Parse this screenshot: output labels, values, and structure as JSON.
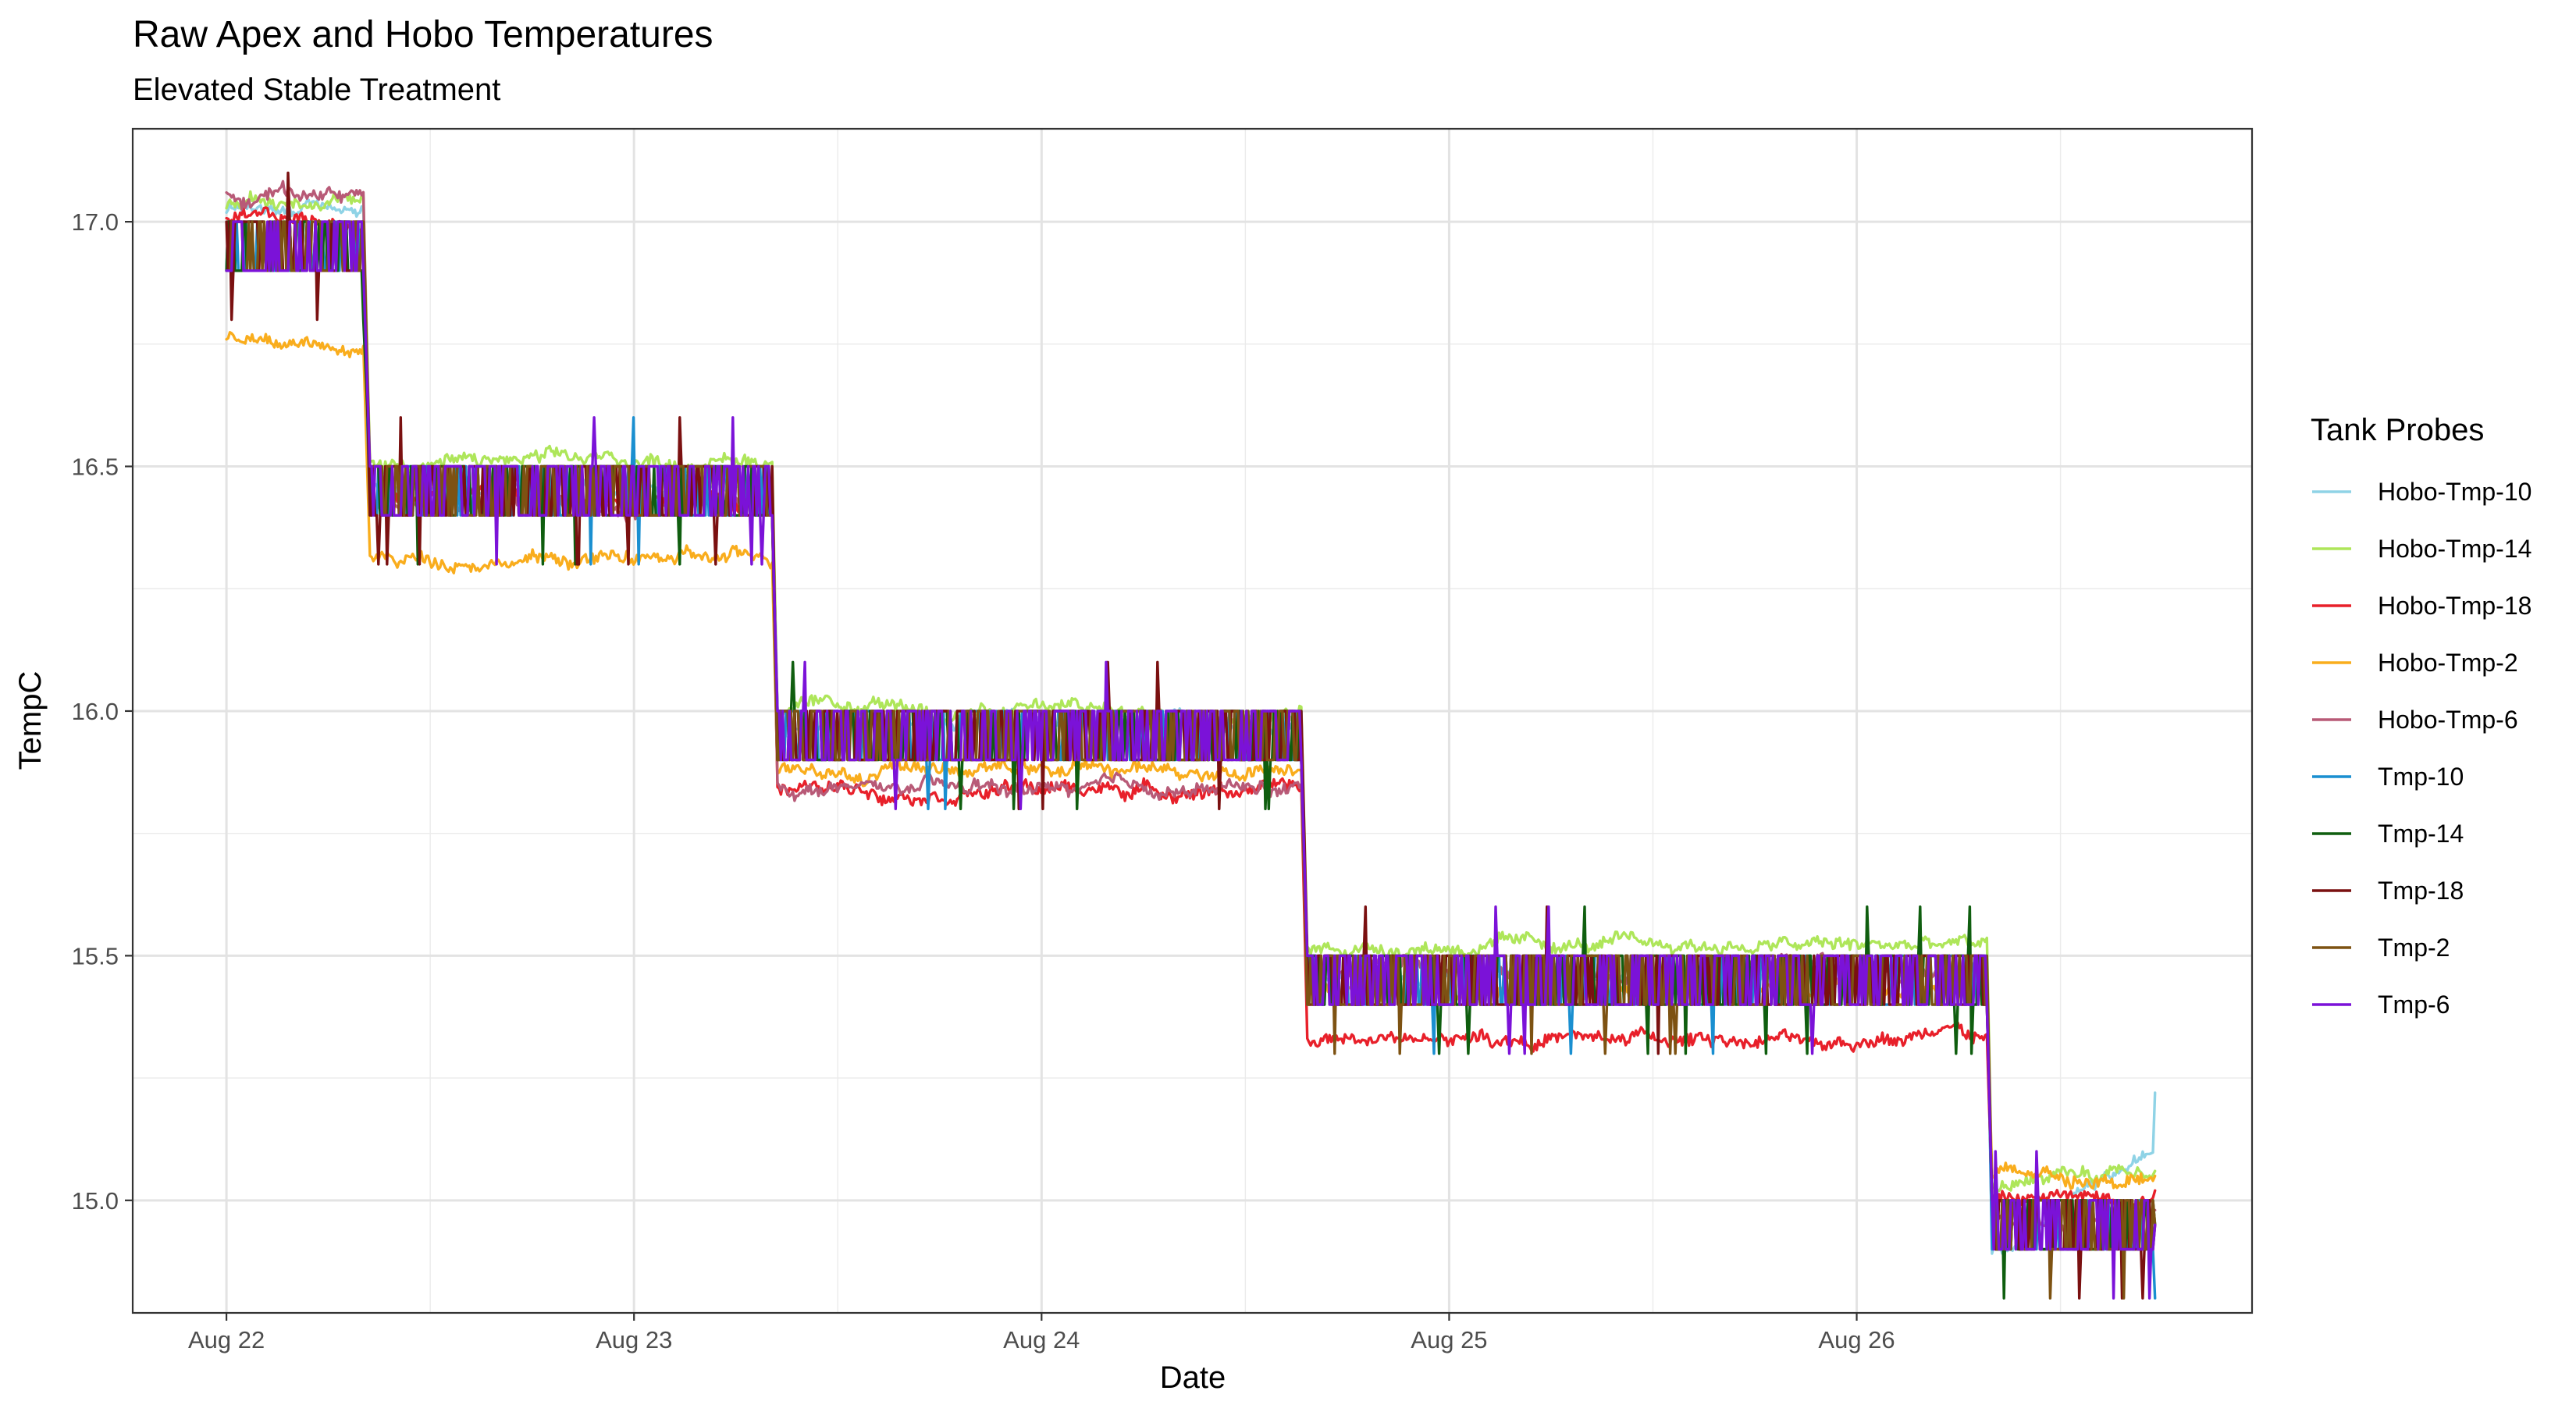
{
  "chart_data": {
    "type": "line",
    "title": "Raw Apex and Hobo Temperatures",
    "subtitle": "Elevated Stable Treatment",
    "xlabel": "Date",
    "ylabel": "TempC",
    "x_ticks": [
      {
        "day": 0,
        "label": "Aug 22"
      },
      {
        "day": 1,
        "label": "Aug 23"
      },
      {
        "day": 2,
        "label": "Aug 24"
      },
      {
        "day": 3,
        "label": "Aug 25"
      },
      {
        "day": 4,
        "label": "Aug 26"
      }
    ],
    "xlim_days": [
      -0.23,
      4.97
    ],
    "y_ticks": [
      "15.0",
      "15.5",
      "16.0",
      "16.5",
      "17.0"
    ],
    "ylim": [
      14.77,
      17.19
    ],
    "grid": true,
    "legend": {
      "title": "Tank Probes",
      "position": "right"
    },
    "step_days": [
      0.34,
      1.34,
      2.64,
      4.32,
      4.73
    ],
    "series": [
      {
        "name": "Hobo-Tmp-10",
        "color": "#8fd3e6",
        "kind": "hobo",
        "levels": [
          17.03,
          16.46,
          15.97,
          15.46,
          14.9
        ],
        "noise": 0.015,
        "end": 15.22
      },
      {
        "name": "Hobo-Tmp-14",
        "color": "#aee65a",
        "kind": "hobo",
        "levels": [
          17.04,
          16.51,
          16.0,
          15.52,
          15.03
        ],
        "noise": 0.02,
        "end": 15.06
      },
      {
        "name": "Hobo-Tmp-18",
        "color": "#e8202a",
        "kind": "hobo",
        "levels": [
          17.0,
          16.43,
          15.84,
          15.33,
          15.0
        ],
        "noise": 0.02,
        "end": 15.02
      },
      {
        "name": "Hobo-Tmp-2",
        "color": "#f9ad1d",
        "kind": "hobo",
        "levels": [
          16.76,
          16.31,
          15.88,
          15.43,
          15.05
        ],
        "noise": 0.02,
        "end": 15.05
      },
      {
        "name": "Hobo-Tmp-6",
        "color": "#b85a77",
        "kind": "hobo",
        "levels": [
          17.06,
          16.42,
          15.84,
          15.47,
          14.96
        ],
        "noise": 0.02,
        "end": 14.98
      },
      {
        "name": "Tmp-10",
        "color": "#1a8fd0",
        "kind": "tmp",
        "levels": [
          16.95,
          16.45,
          15.95,
          15.45,
          14.95
        ],
        "end": 14.8
      },
      {
        "name": "Tmp-14",
        "color": "#0f5e0f",
        "kind": "tmp",
        "levels": [
          16.95,
          16.45,
          15.95,
          15.45,
          14.95
        ],
        "end": 14.95
      },
      {
        "name": "Tmp-18",
        "color": "#7a1010",
        "kind": "tmp",
        "levels": [
          16.95,
          16.45,
          15.95,
          15.45,
          14.95
        ],
        "end": 14.95
      },
      {
        "name": "Tmp-2",
        "color": "#7d5212",
        "kind": "tmp",
        "levels": [
          16.95,
          16.45,
          15.95,
          15.45,
          14.95
        ],
        "end": 14.95
      },
      {
        "name": "Tmp-6",
        "color": "#7b12d8",
        "kind": "tmp",
        "levels": [
          16.95,
          16.45,
          15.95,
          15.45,
          14.95
        ],
        "end": 14.95
      }
    ]
  }
}
